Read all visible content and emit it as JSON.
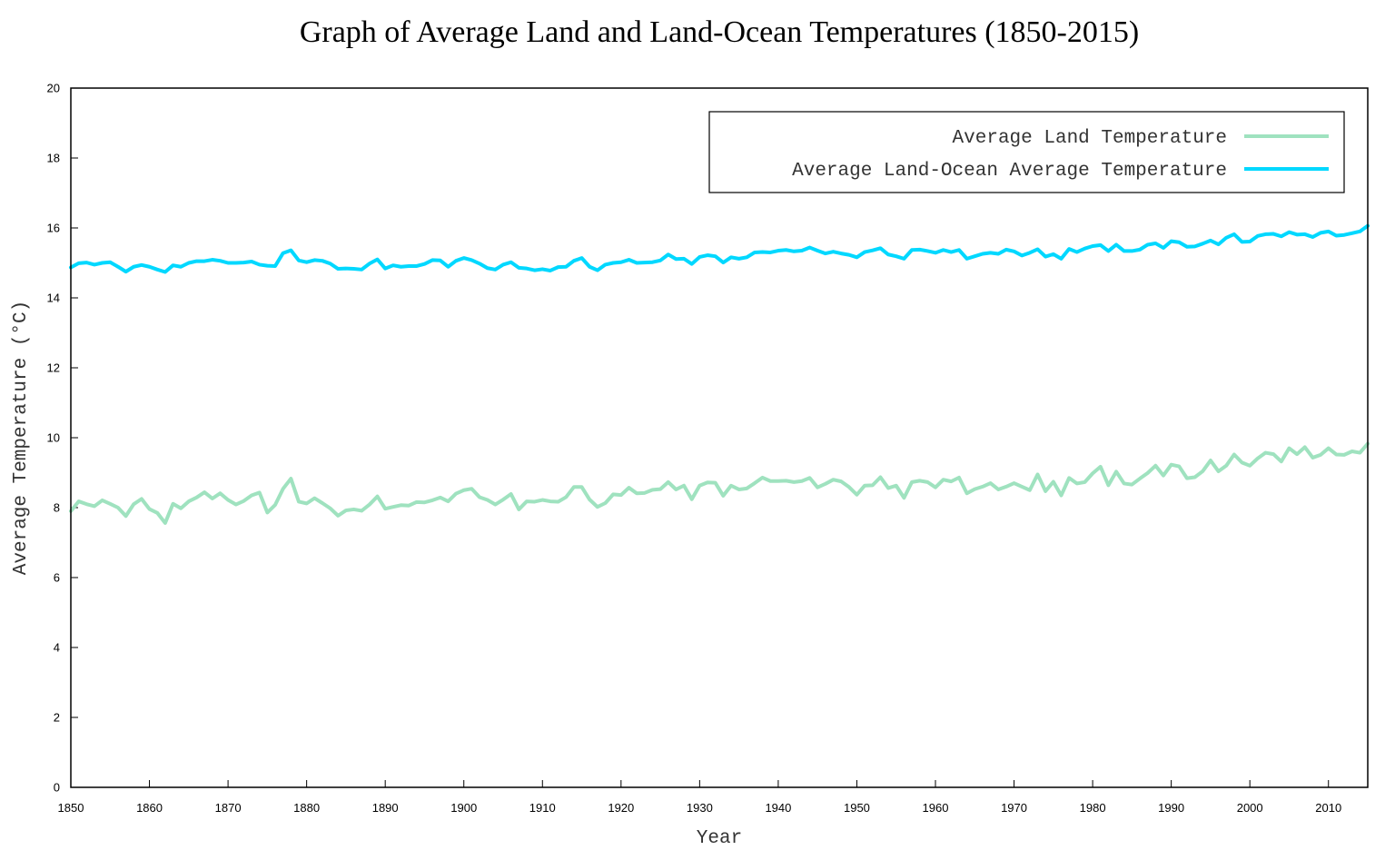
{
  "chart_data": {
    "type": "line",
    "title": "Graph of Average Land and Land-Ocean Temperatures (1850-2015)",
    "xlabel": "Year",
    "ylabel": "Average Temperature (°C)",
    "xlim": [
      1850,
      2015
    ],
    "ylim": [
      0,
      20
    ],
    "xticks": [
      "1850",
      "1860",
      "1870",
      "1880",
      "1890",
      "1900",
      "1910",
      "1920",
      "1930",
      "1940",
      "1950",
      "1960",
      "1970",
      "1980",
      "1990",
      "2000",
      "2010"
    ],
    "yticks": [
      "0",
      "2",
      "4",
      "6",
      "8",
      "10",
      "12",
      "14",
      "16",
      "18",
      "20"
    ],
    "grid": false,
    "legend_position": "top-right",
    "series": [
      {
        "name": "Average Land Temperature",
        "color": "#9fe2bf",
        "values": [
          7.9,
          8.18,
          8.1,
          8.04,
          8.21,
          8.11,
          8.0,
          7.76,
          8.1,
          8.25,
          7.96,
          7.85,
          7.56,
          8.11,
          7.98,
          8.18,
          8.29,
          8.44,
          8.26,
          8.41,
          8.22,
          8.09,
          8.19,
          8.35,
          8.43,
          7.86,
          8.08,
          8.54,
          8.83,
          8.17,
          8.12,
          8.27,
          8.13,
          7.98,
          7.77,
          7.92,
          7.95,
          7.91,
          8.09,
          8.32,
          7.97,
          8.02,
          8.07,
          8.06,
          8.16,
          8.15,
          8.21,
          8.29,
          8.18,
          8.4,
          8.5,
          8.54,
          8.3,
          8.22,
          8.09,
          8.23,
          8.39,
          7.95,
          8.18,
          8.17,
          8.22,
          8.18,
          8.17,
          8.3,
          8.59,
          8.59,
          8.23,
          8.02,
          8.13,
          8.38,
          8.36,
          8.57,
          8.41,
          8.42,
          8.51,
          8.53,
          8.73,
          8.52,
          8.63,
          8.24,
          8.63,
          8.72,
          8.71,
          8.34,
          8.63,
          8.52,
          8.55,
          8.7,
          8.86,
          8.76,
          8.76,
          8.77,
          8.73,
          8.76,
          8.85,
          8.58,
          8.68,
          8.8,
          8.75,
          8.59,
          8.37,
          8.63,
          8.64,
          8.87,
          8.56,
          8.63,
          8.28,
          8.73,
          8.77,
          8.73,
          8.58,
          8.8,
          8.75,
          8.86,
          8.41,
          8.53,
          8.6,
          8.7,
          8.52,
          8.6,
          8.7,
          8.6,
          8.5,
          8.95,
          8.47,
          8.74,
          8.35,
          8.85,
          8.69,
          8.73,
          8.98,
          9.17,
          8.64,
          9.03,
          8.69,
          8.66,
          8.83,
          8.99,
          9.2,
          8.92,
          9.23,
          9.18,
          8.84,
          8.87,
          9.04,
          9.35,
          9.04,
          9.2,
          9.52,
          9.29,
          9.2,
          9.41,
          9.57,
          9.53,
          9.32,
          9.7,
          9.53,
          9.73,
          9.43,
          9.51,
          9.7,
          9.52,
          9.51,
          9.61,
          9.57,
          9.83
        ]
      },
      {
        "name": "Average Land-Ocean Average Temperature",
        "color": "#00d8ff",
        "values": [
          14.87,
          14.99,
          15.01,
          14.95,
          15.0,
          15.02,
          14.89,
          14.75,
          14.89,
          14.94,
          14.89,
          14.81,
          14.74,
          14.93,
          14.89,
          15.0,
          15.05,
          15.05,
          15.09,
          15.06,
          15.0,
          15.0,
          15.01,
          15.04,
          14.95,
          14.92,
          14.91,
          15.28,
          15.36,
          15.07,
          15.02,
          15.08,
          15.06,
          14.98,
          14.83,
          14.84,
          14.83,
          14.81,
          14.98,
          15.1,
          14.84,
          14.93,
          14.89,
          14.91,
          14.91,
          14.97,
          15.08,
          15.07,
          14.89,
          15.06,
          15.14,
          15.08,
          14.98,
          14.85,
          14.81,
          14.95,
          15.02,
          14.86,
          14.84,
          14.79,
          14.82,
          14.78,
          14.88,
          14.89,
          15.06,
          15.14,
          14.89,
          14.79,
          14.95,
          15.0,
          15.02,
          15.09,
          15.0,
          15.01,
          15.02,
          15.07,
          15.24,
          15.11,
          15.12,
          14.97,
          15.17,
          15.22,
          15.19,
          15.01,
          15.16,
          15.12,
          15.16,
          15.3,
          15.31,
          15.3,
          15.35,
          15.37,
          15.33,
          15.35,
          15.44,
          15.35,
          15.27,
          15.32,
          15.27,
          15.23,
          15.16,
          15.31,
          15.36,
          15.42,
          15.24,
          15.19,
          15.12,
          15.37,
          15.38,
          15.34,
          15.29,
          15.37,
          15.31,
          15.37,
          15.12,
          15.19,
          15.26,
          15.29,
          15.26,
          15.38,
          15.33,
          15.21,
          15.29,
          15.39,
          15.18,
          15.25,
          15.12,
          15.4,
          15.31,
          15.41,
          15.48,
          15.51,
          15.34,
          15.52,
          15.34,
          15.34,
          15.38,
          15.52,
          15.56,
          15.43,
          15.62,
          15.59,
          15.46,
          15.47,
          15.55,
          15.64,
          15.53,
          15.72,
          15.82,
          15.6,
          15.61,
          15.77,
          15.82,
          15.83,
          15.76,
          15.88,
          15.81,
          15.82,
          15.74,
          15.86,
          15.9,
          15.78,
          15.8,
          15.85,
          15.9,
          16.06
        ]
      }
    ]
  }
}
